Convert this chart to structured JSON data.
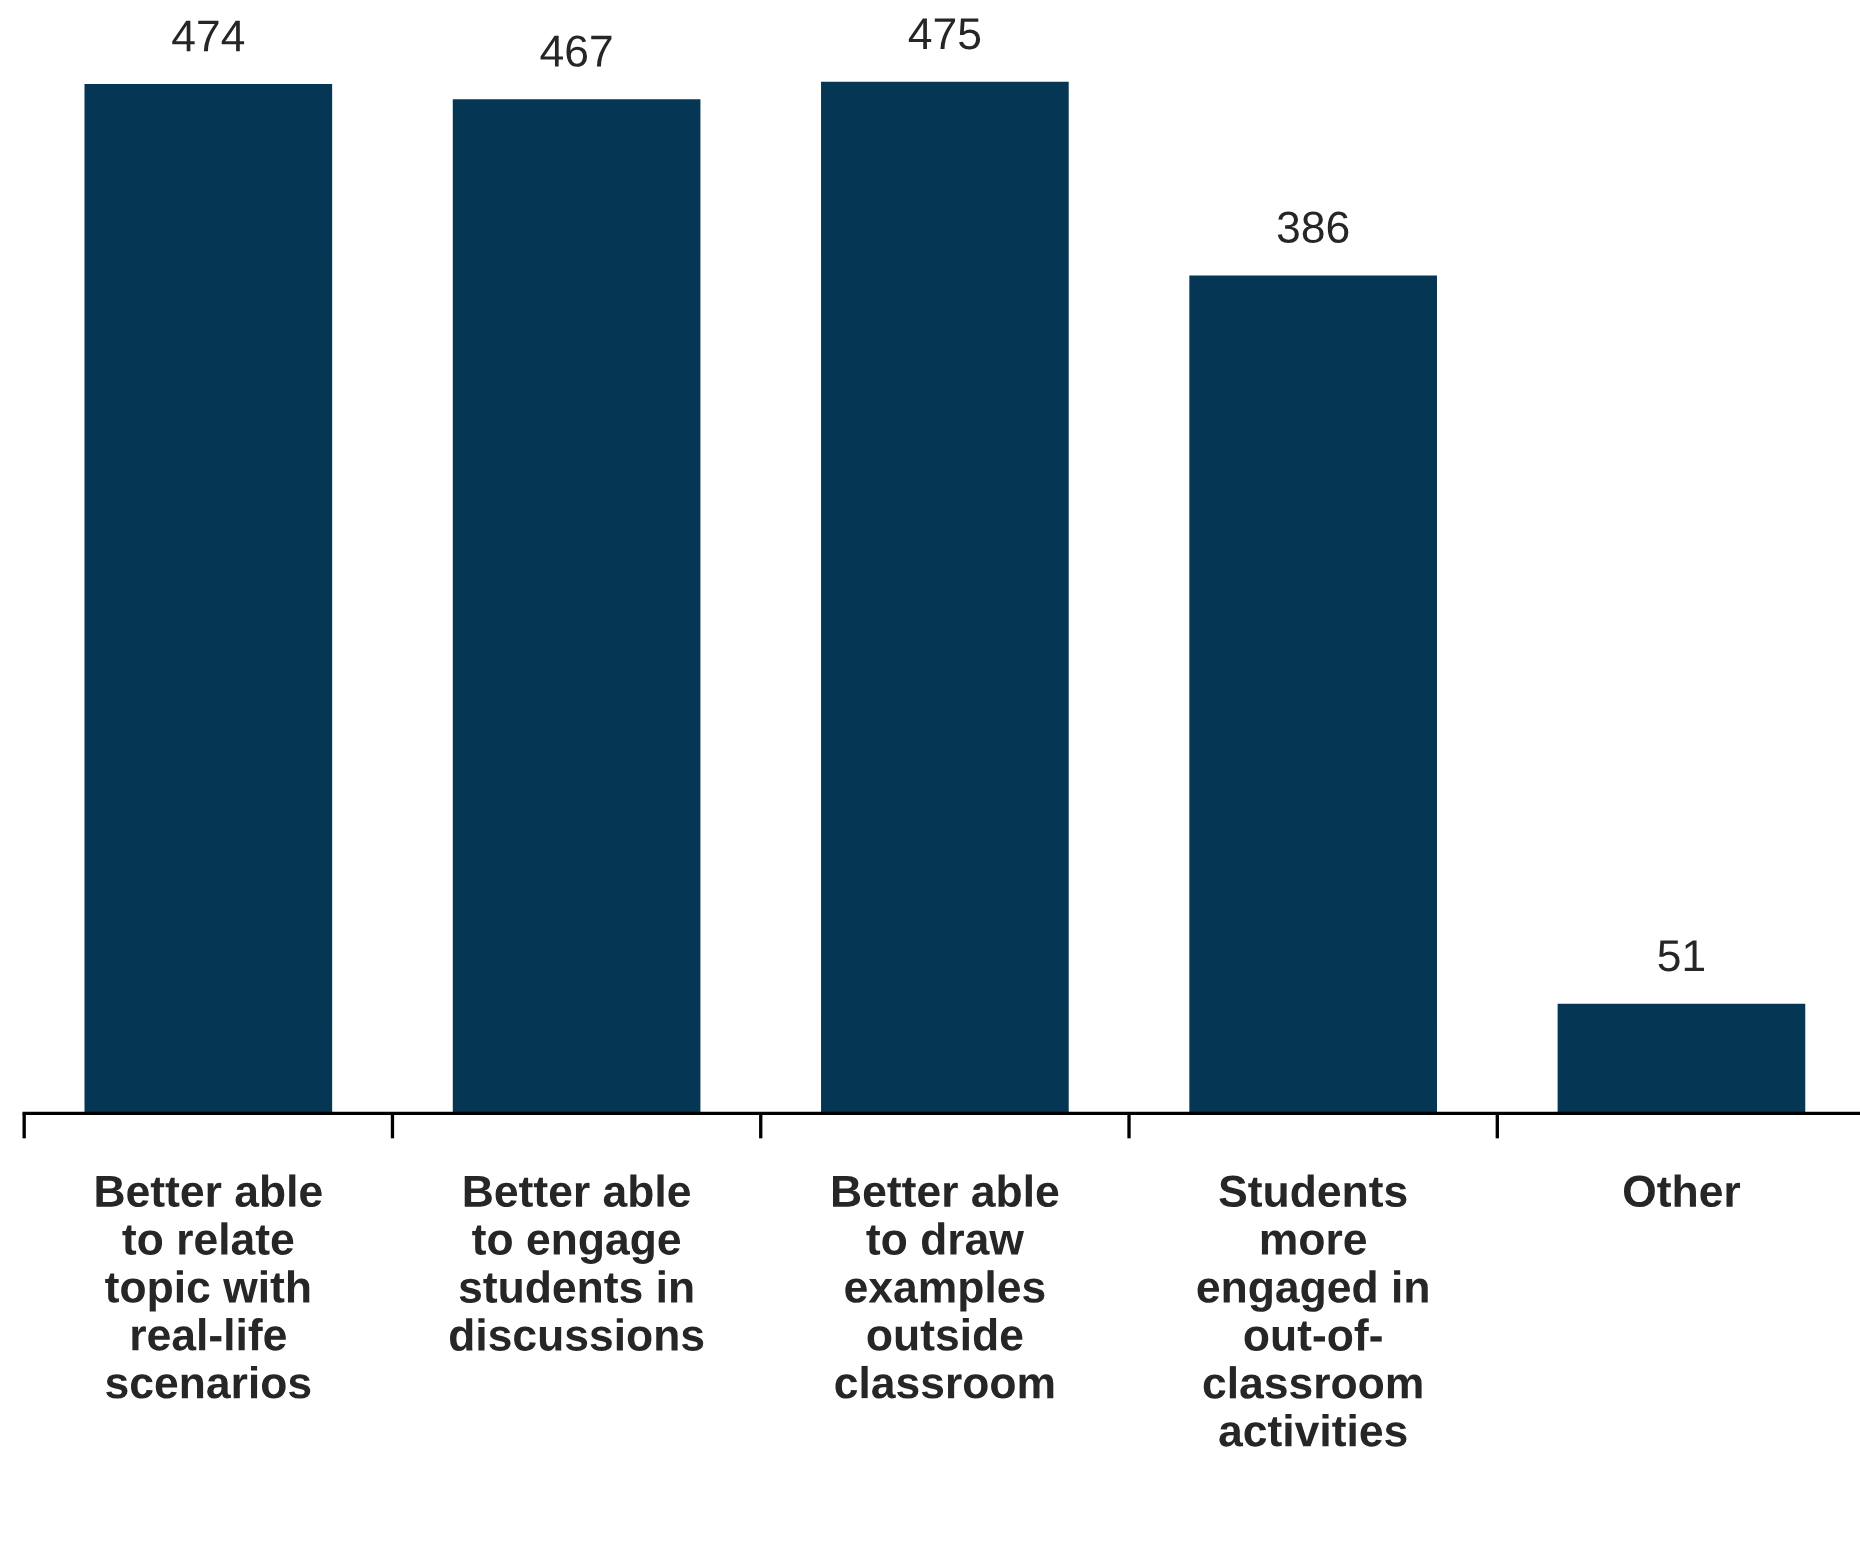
{
  "chart_data": {
    "type": "bar",
    "categories": [
      "Better able\nto relate\ntopic with\nreal-life\nscenarios",
      "Better able\nto engage\nstudents in\ndiscussions",
      "Better able\nto draw\nexamples\noutside\nclassroom",
      "Students\nmore\nengaged in\nout-of-\nclassroom\nactivities",
      "Other"
    ],
    "values": [
      474,
      467,
      475,
      386,
      51
    ],
    "color": "#053654",
    "data_labels": true,
    "grid": false,
    "legend": false
  }
}
